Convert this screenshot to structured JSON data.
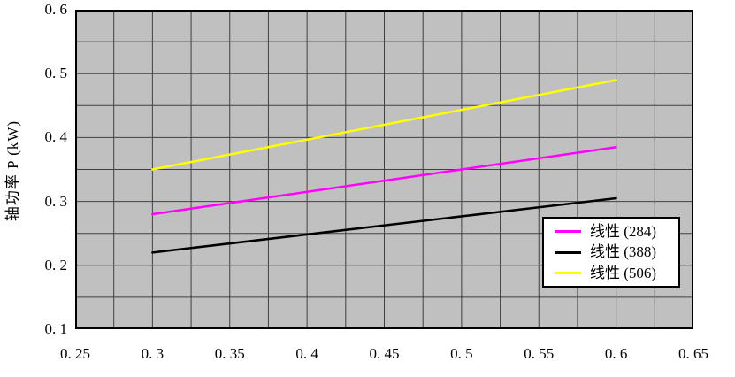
{
  "figure": {
    "background": "#ffffff"
  },
  "chart_data": {
    "type": "line",
    "title": "",
    "xlabel": "",
    "ylabel": "轴功率 P (kW)",
    "x_axis": {
      "min": 0.25,
      "max": 0.65,
      "grid_step": 0.025,
      "tick_values": [
        0.25,
        0.3,
        0.35,
        0.4,
        0.45,
        0.5,
        0.55,
        0.6,
        0.65
      ],
      "tick_labels": [
        "0. 25",
        "0. 3",
        "0. 35",
        "0. 4",
        "0. 45",
        "0. 5",
        "0. 55",
        "0. 6",
        "0. 65"
      ]
    },
    "y_axis": {
      "min": 0.1,
      "max": 0.6,
      "grid_step": 0.05,
      "tick_values": [
        0.6,
        0.5,
        0.4,
        0.3,
        0.2,
        0.1
      ],
      "tick_labels": [
        "0. 6",
        "0. 5",
        "0. 4",
        "0. 3",
        "0. 2",
        "0. 1"
      ]
    },
    "series": [
      {
        "name": "线性 (284)",
        "color": "#ff00ff",
        "x": [
          0.3,
          0.6
        ],
        "y": [
          0.28,
          0.385
        ]
      },
      {
        "name": "线性 (388)",
        "color": "#000000",
        "x": [
          0.3,
          0.6
        ],
        "y": [
          0.22,
          0.305
        ]
      },
      {
        "name": "线性 (506)",
        "color": "#ffff00",
        "x": [
          0.3,
          0.6
        ],
        "y": [
          0.35,
          0.49
        ]
      }
    ],
    "legend": {
      "position": "inside-right",
      "entries": [
        "线性 (284)",
        "线性 (388)",
        "线性 (506)"
      ]
    },
    "colors": {
      "plot_background": "#c0c0c0",
      "grid": "#404040",
      "axis_border": "#000000",
      "text": "#000000",
      "legend_background": "#ffffff",
      "legend_border": "#000000"
    }
  }
}
